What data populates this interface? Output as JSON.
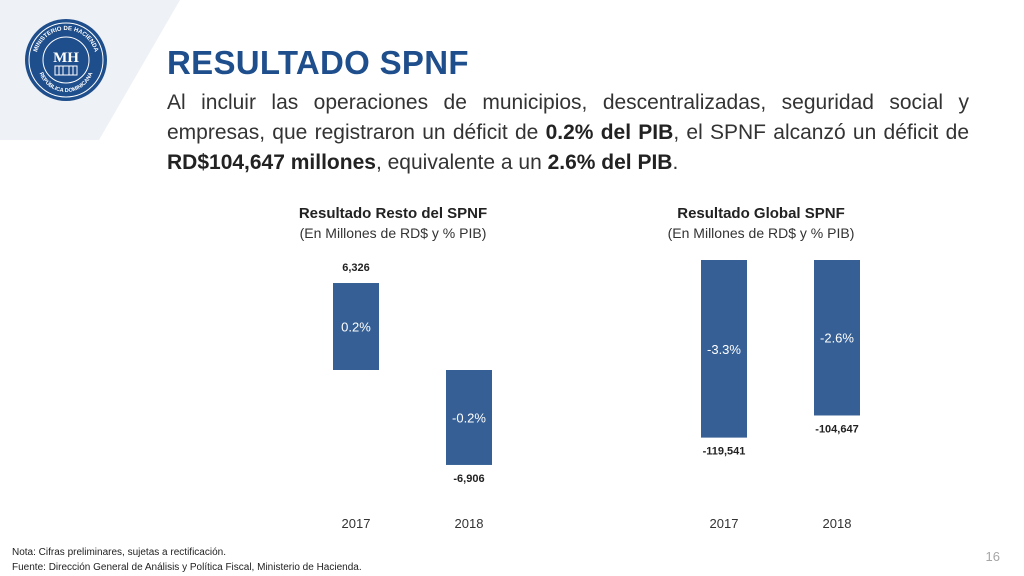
{
  "header": {
    "title": "RESULTADO SPNF",
    "logo_icon": "ministerio-hacienda-seal-icon",
    "logo_text_top": "MINISTERIO DE HACIENDA",
    "logo_text_bottom": "REPÚBLICA DOMINICANA",
    "logo_monogram": "MH"
  },
  "intro": {
    "t1": "Al incluir las operaciones de municipios, descentralizadas, seguridad social y empresas, que registraron un déficit de ",
    "b1": "0.2% del PIB",
    "t2": ", el SPNF alcanzó un déficit de ",
    "b2": "RD$104,647 millones",
    "t3": ", equivalente a un ",
    "b3": "2.6% del PIB",
    "t4": "."
  },
  "chart_data": [
    {
      "type": "bar",
      "title": "Resultado Resto del SPNF",
      "subtitle": "(En Millones de RD$ y % PIB)",
      "categories": [
        "2017",
        "2018"
      ],
      "values": [
        6326,
        -6906
      ],
      "value_labels": [
        "6,326",
        "-6,906"
      ],
      "bar_labels": [
        "0.2%",
        "-0.2%"
      ],
      "ylim": [
        -8000,
        8000
      ],
      "bar_color": "#355f95",
      "grid": false,
      "legend": "none"
    },
    {
      "type": "bar",
      "title": "Resultado Global SPNF",
      "subtitle": "(En Millones de RD$ y % PIB)",
      "categories": [
        "2017",
        "2018"
      ],
      "values": [
        -119541,
        -104647
      ],
      "value_labels": [
        "-119,541",
        "-104,647"
      ],
      "bar_labels": [
        "-3.3%",
        "-2.6%"
      ],
      "ylim": [
        -140000,
        0
      ],
      "bar_color": "#355f95",
      "grid": false,
      "legend": "none"
    }
  ],
  "footer": {
    "note": "Nota: Cifras preliminares, sujetas a rectificación.",
    "source": "Fuente: Dirección General de Análisis y Política Fiscal, Ministerio de Hacienda.",
    "page_number": "16"
  }
}
